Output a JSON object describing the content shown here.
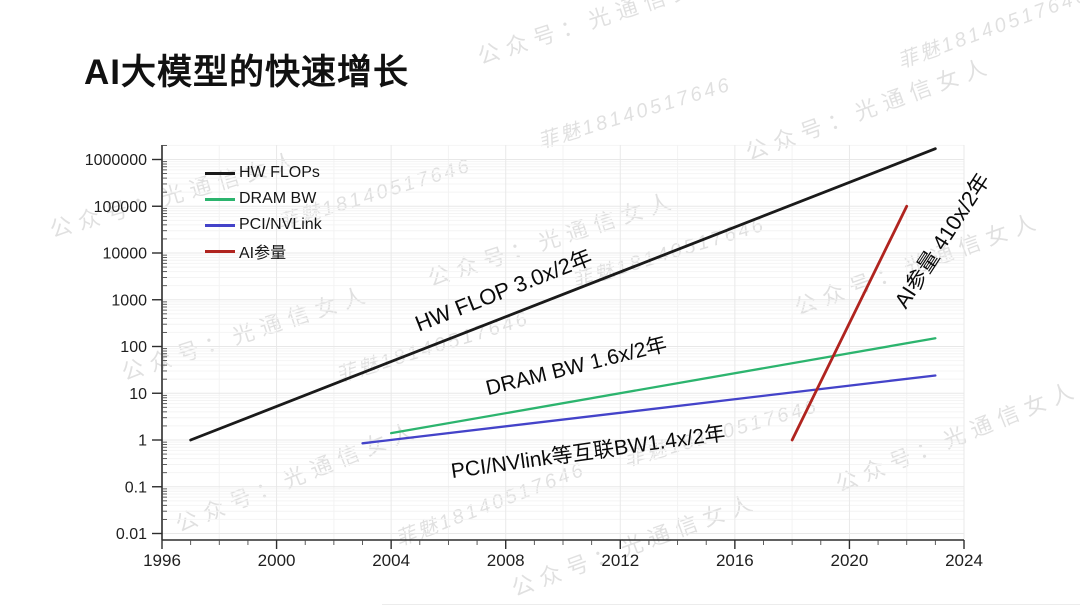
{
  "title": "AI大模型的快速增长",
  "watermarks": {
    "text_a": "公众号：光通信女人",
    "text_b": "菲魅18140517646"
  },
  "chart_data": {
    "type": "line",
    "title": "AI大模型的快速增长",
    "xlabel": "",
    "ylabel": "",
    "x_axis": {
      "scale": "linear",
      "range": [
        1996,
        2024
      ],
      "ticks": [
        1996,
        2000,
        2004,
        2008,
        2012,
        2016,
        2020,
        2024
      ],
      "minor_tick_step_years": 1
    },
    "y_axis": {
      "scale": "log",
      "range": [
        0.01,
        1000000
      ],
      "ticks": [
        "1000000",
        "100000",
        "10000",
        "1000",
        "100",
        "10",
        "1",
        "0.1",
        "0.01"
      ]
    },
    "grid": "on",
    "legend_position": "top-left",
    "series": [
      {
        "name": "HW FLOPs",
        "color": "#1a1a1a",
        "annotation": "HW FLOP 3.0x/2年",
        "growth_rate": "3.0x / 2 years",
        "points": [
          [
            1997,
            1
          ],
          [
            2023,
            1700000
          ]
        ]
      },
      {
        "name": "DRAM BW",
        "color": "#2cb46e",
        "annotation": "DRAM BW 1.6x/2年",
        "growth_rate": "1.6x / 2 years",
        "points": [
          [
            2004,
            1.4
          ],
          [
            2023,
            150
          ]
        ]
      },
      {
        "name": "PCI/NVLink",
        "color": "#4443c9",
        "annotation": "PCI/NVlink等互联BW1.4x/2年",
        "growth_rate": "1.4x / 2 years",
        "points": [
          [
            2003,
            0.85
          ],
          [
            2023,
            24
          ]
        ]
      },
      {
        "name": "AI参量",
        "color": "#b0241f",
        "annotation": "AI参量 410x/2年",
        "growth_rate": "410x / 2 years",
        "points": [
          [
            2018,
            1
          ],
          [
            2022,
            100000
          ]
        ]
      }
    ]
  }
}
